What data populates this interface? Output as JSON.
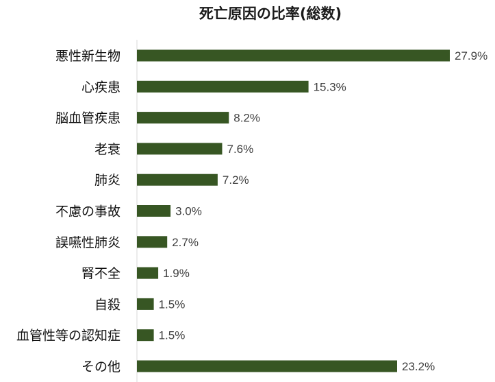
{
  "chart_data": {
    "type": "bar",
    "orientation": "horizontal",
    "title": "死亡原因の比率(総数)",
    "categories": [
      "悪性新生物",
      "心疾患",
      "脳血管疾患",
      "老衰",
      "肺炎",
      "不慮の事故",
      "誤嚥性肺炎",
      "腎不全",
      "自殺",
      "血管性等の認知症",
      "その他"
    ],
    "values": [
      27.9,
      15.3,
      8.2,
      7.6,
      7.2,
      3.0,
      2.7,
      1.9,
      1.5,
      1.5,
      23.2
    ],
    "value_labels": [
      "27.9%",
      "15.3%",
      "8.2%",
      "7.6%",
      "7.2%",
      "3.0%",
      "2.7%",
      "1.9%",
      "1.5%",
      "1.5%",
      "23.2%"
    ],
    "xlim": [
      0,
      30
    ],
    "grid": false,
    "legend": "none",
    "bar_color": "#375623"
  }
}
